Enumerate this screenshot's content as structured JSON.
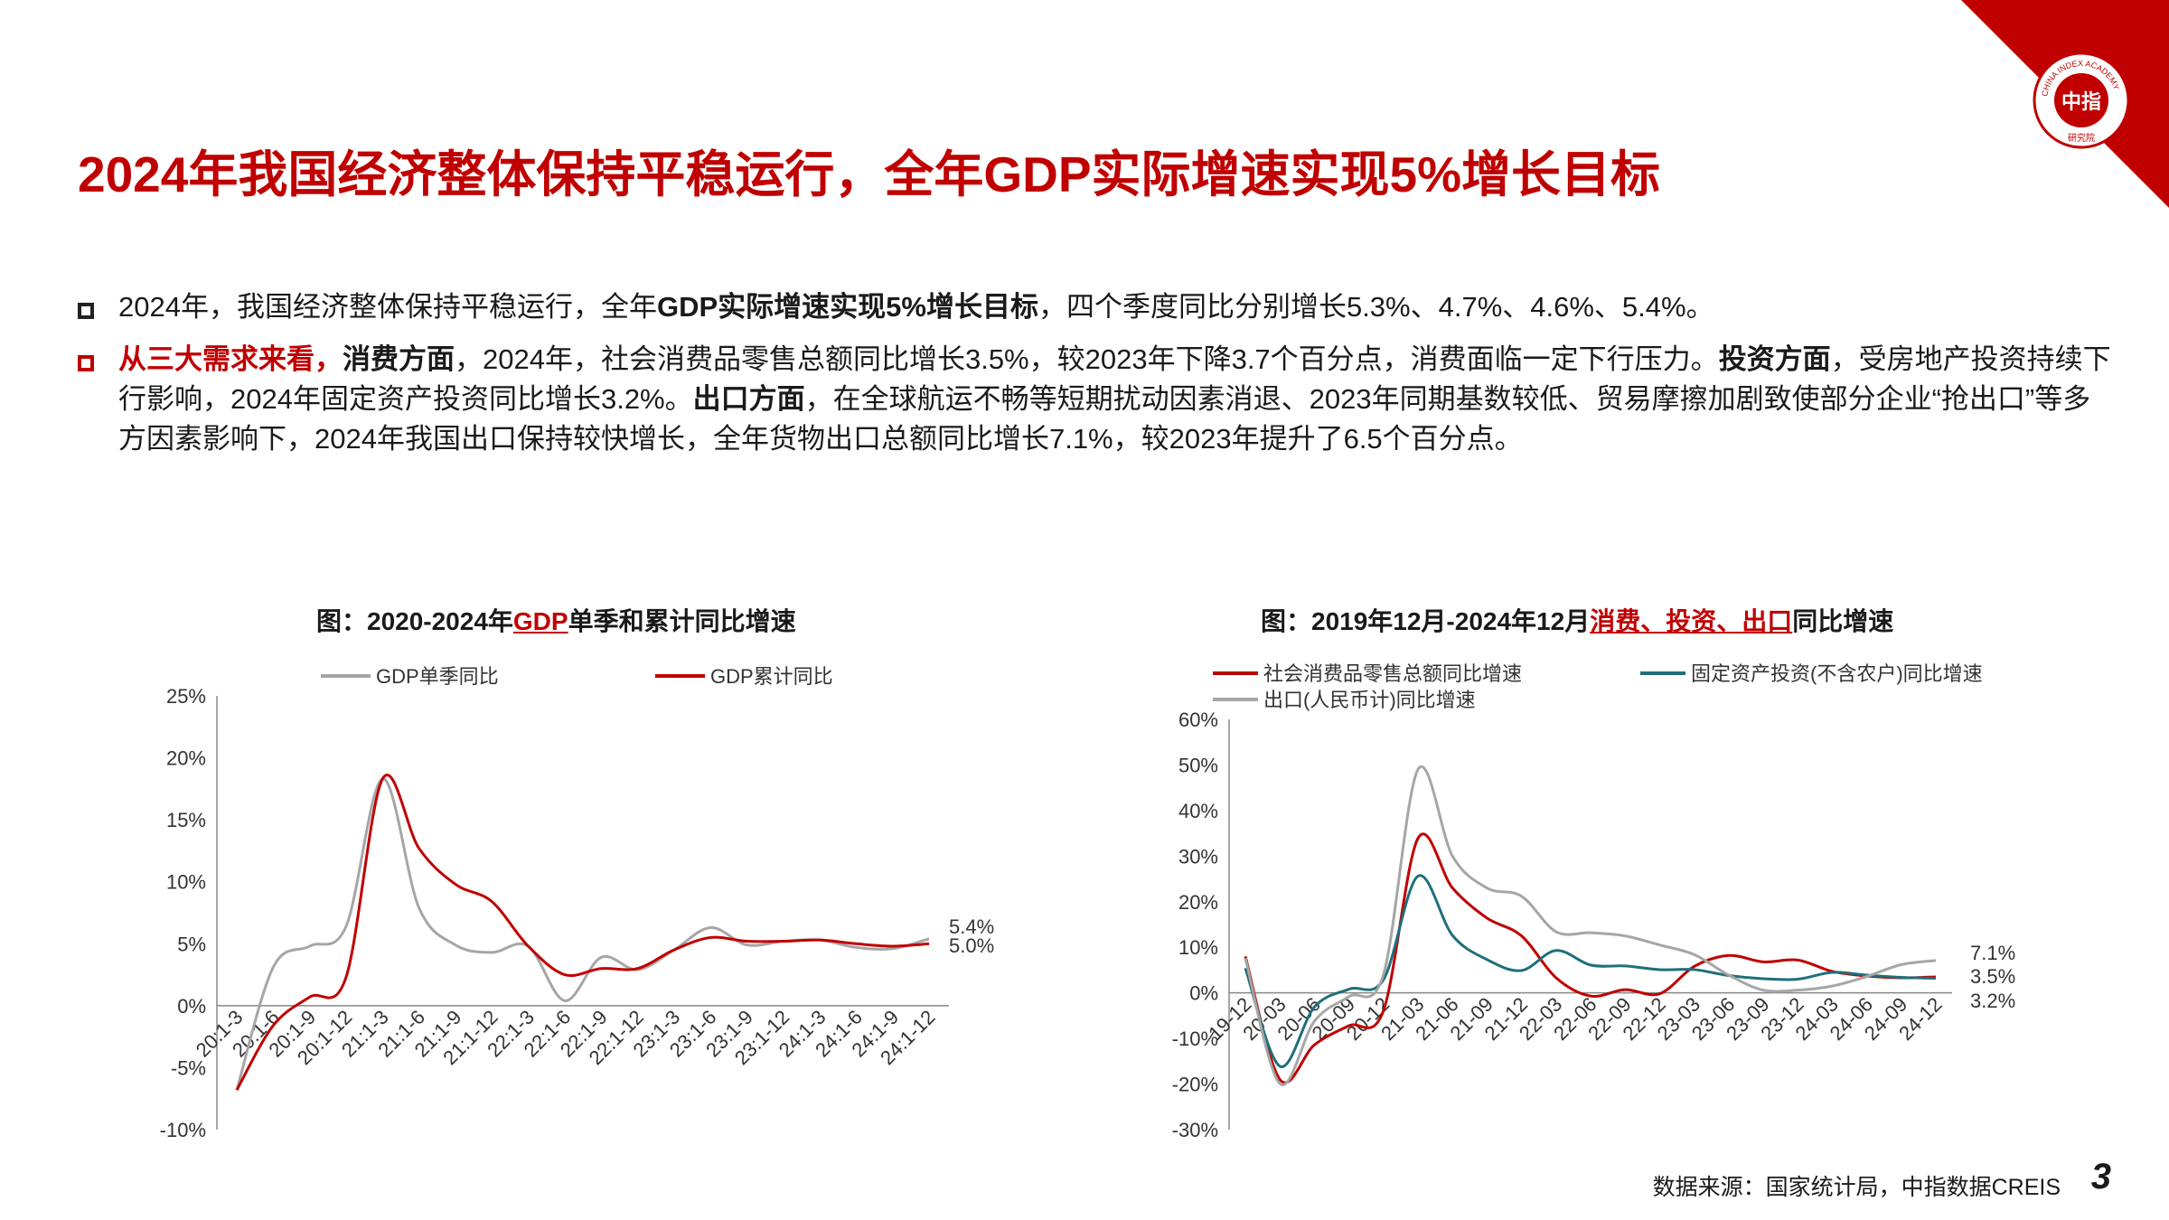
{
  "page": {
    "title": "2024年我国经济整体保持平稳运行，全年GDP实际增速实现5%增长目标",
    "logo_text": "中指",
    "logo_ring_text": "CHINA INDEX ACADEMY",
    "logo_sub": "研究院",
    "watermark": "中指数据 CREIS",
    "footer": "数据来源：国家统计局，中指数据CREIS",
    "page_number": "3",
    "accent_color": "#c00000"
  },
  "bullets": [
    {
      "parts": [
        {
          "t": "2024年，我国经济整体保持平稳运行，全年",
          "s": ""
        },
        {
          "t": "GDP实际增速实现5%增长目标",
          "s": "b"
        },
        {
          "t": "，四个季度同比分别增长5.3%、4.7%、4.6%、5.4%。",
          "s": ""
        }
      ]
    },
    {
      "parts": [
        {
          "t": "从三大需求来看，",
          "s": "b red"
        },
        {
          "t": "消费方面",
          "s": "b"
        },
        {
          "t": "，2024年，社会消费品零售总额同比增长3.5%，较2023年下降3.7个百分点，消费面临一定下行压力。",
          "s": ""
        },
        {
          "t": "投资方面",
          "s": "b"
        },
        {
          "t": "，受房地产投资持续下行影响，2024年固定资产投资同比增长3.2%。",
          "s": ""
        },
        {
          "t": "出口方面",
          "s": "b"
        },
        {
          "t": "，在全球航运不畅等短期扰动因素消退、2023年同期基数较低、贸易摩擦加剧致使部分企业“抢出口”等多方因素影响下，2024年我国出口保持较快增长，全年货物出口总额同比增长7.1%，较2023年提升了6.5个百分点。",
          "s": ""
        }
      ]
    }
  ],
  "chart_titles": {
    "left": {
      "pre": "图：2020-2024年",
      "hl": "GDP",
      "post": "单季和累计同比增速"
    },
    "right": {
      "pre": "图：2019年12月-2024年12月",
      "hl": "消费、投资、出口",
      "post": "同比增速"
    }
  },
  "chart_data": [
    {
      "type": "line",
      "title": "图：2020-2024年GDP单季和累计同比增速",
      "ylim": [
        -10,
        25
      ],
      "yticks": [
        "25%",
        "20%",
        "15%",
        "10%",
        "5%",
        "0%",
        "-5%",
        "-10%"
      ],
      "x": [
        "20:1-3",
        "20:1-6",
        "20:1-9",
        "20:1-12",
        "21:1-3",
        "21:1-6",
        "21:1-9",
        "21:1-12",
        "22:1-3",
        "22:1-6",
        "22:1-9",
        "22:1-12",
        "23:1-3",
        "23:1-6",
        "23:1-9",
        "23:1-12",
        "24:1-3",
        "24:1-6",
        "24:1-9",
        "24:1-12"
      ],
      "legend_position": "top",
      "series": [
        {
          "name": "GDP单季同比",
          "color": "#a6a6a6",
          "values": [
            -6.8,
            3.1,
            4.8,
            6.4,
            18.3,
            7.9,
            4.9,
            4.3,
            4.8,
            0.4,
            3.9,
            2.9,
            4.5,
            6.3,
            4.9,
            5.2,
            5.3,
            4.7,
            4.6,
            5.4
          ]
        },
        {
          "name": "GDP累计同比",
          "color": "#c00000",
          "values": [
            -6.8,
            -1.6,
            0.7,
            2.3,
            18.3,
            12.7,
            9.8,
            8.4,
            4.8,
            2.5,
            3.0,
            3.0,
            4.5,
            5.5,
            5.2,
            5.2,
            5.3,
            5.0,
            4.8,
            5.0
          ]
        }
      ],
      "end_labels": [
        "5.4%",
        "5.0%"
      ]
    },
    {
      "type": "line",
      "title": "图：2019年12月-2024年12月消费、投资、出口同比增速",
      "ylim": [
        -30,
        60
      ],
      "yticks": [
        "60%",
        "50%",
        "40%",
        "30%",
        "20%",
        "10%",
        "0%",
        "-10%",
        "-20%",
        "-30%"
      ],
      "x": [
        "19-12",
        "20-03",
        "20-06",
        "20-09",
        "20-12",
        "21-03",
        "21-06",
        "21-09",
        "21-12",
        "22-03",
        "22-06",
        "22-09",
        "22-12",
        "23-03",
        "23-06",
        "23-09",
        "23-12",
        "24-03",
        "24-06",
        "24-09",
        "24-12"
      ],
      "legend_position": "top",
      "series": [
        {
          "name": "社会消费品零售总额同比增速",
          "color": "#c00000",
          "values": [
            8.0,
            -19.0,
            -11.4,
            -7.2,
            -3.9,
            33.9,
            23.0,
            16.4,
            12.5,
            3.3,
            -0.7,
            0.7,
            -0.2,
            5.8,
            8.2,
            6.8,
            7.2,
            4.7,
            3.7,
            3.3,
            3.5
          ]
        },
        {
          "name": "固定资产投资(不含农户)同比增速",
          "color": "#1f6f7a",
          "values": [
            5.4,
            -16.1,
            -3.1,
            0.8,
            2.9,
            25.6,
            12.6,
            7.3,
            4.9,
            9.3,
            6.1,
            5.9,
            5.1,
            5.1,
            3.8,
            3.1,
            3.0,
            4.5,
            3.9,
            3.4,
            3.2
          ]
        },
        {
          "name": "出口(人民币计)同比增速",
          "color": "#a6a6a6",
          "values": [
            7.6,
            -19.9,
            -6.2,
            -0.8,
            4.0,
            49.0,
            30.0,
            23.0,
            21.2,
            13.4,
            13.2,
            12.5,
            10.5,
            8.4,
            3.9,
            0.6,
            0.6,
            1.5,
            3.6,
            6.2,
            7.1
          ]
        }
      ],
      "end_labels": [
        "7.1%",
        "3.5%",
        "3.2%"
      ]
    }
  ]
}
